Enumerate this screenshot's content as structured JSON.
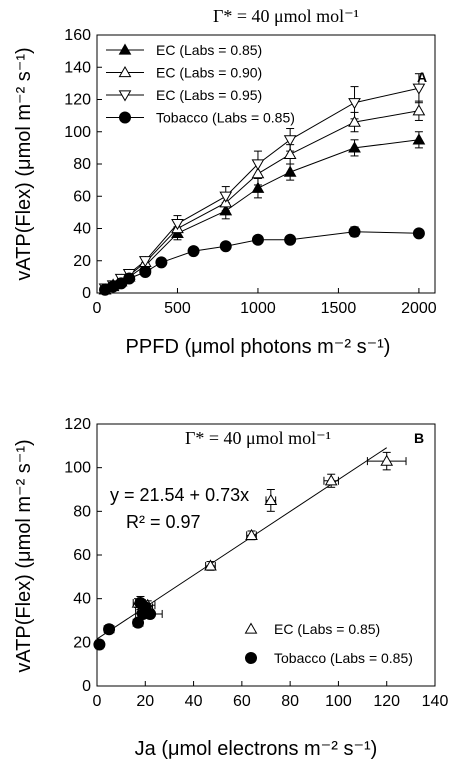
{
  "chart_data": [
    {
      "type": "line",
      "panel_letter": "A",
      "title": "Γ* = 40 μmol mol⁻¹",
      "xlabel": "PPFD (μmol photons m⁻² s⁻¹)",
      "ylabel": "vATP(Flex) (μmol m⁻² s⁻¹)",
      "xlim": [
        0,
        2100
      ],
      "ylim": [
        0,
        160
      ],
      "xticks": [
        0,
        500,
        1000,
        1500,
        2000
      ],
      "yticks": [
        0,
        20,
        40,
        60,
        80,
        100,
        120,
        140,
        160
      ],
      "grid": false,
      "legend_position": "top-left",
      "series": [
        {
          "name": "EC (Labs = 0.85)",
          "marker": "filled-triangle-up",
          "x": [
            50,
            100,
            150,
            200,
            300,
            500,
            800,
            1000,
            1200,
            1600,
            2000
          ],
          "y": [
            2,
            4,
            7,
            10,
            17,
            37,
            51,
            65,
            75,
            90,
            95
          ],
          "err": [
            1,
            1,
            1,
            1,
            2,
            4,
            5,
            6,
            5,
            5,
            5
          ]
        },
        {
          "name": "EC (Labs = 0.90)",
          "marker": "open-triangle-up",
          "x": [
            50,
            100,
            150,
            200,
            300,
            500,
            800,
            1000,
            1200,
            1600,
            2000
          ],
          "y": [
            2,
            5,
            8,
            11,
            19,
            40,
            56,
            74,
            86,
            106,
            113
          ],
          "err": [
            1,
            1,
            1,
            1,
            2,
            4,
            5,
            7,
            6,
            6,
            6
          ]
        },
        {
          "name": "EC (Labs = 0.95)",
          "marker": "open-triangle-down",
          "x": [
            50,
            100,
            150,
            200,
            300,
            500,
            800,
            1000,
            1200,
            1600,
            2000
          ],
          "y": [
            3,
            5,
            9,
            12,
            20,
            43,
            60,
            80,
            95,
            118,
            127
          ],
          "err": [
            1,
            1,
            1,
            1,
            2,
            5,
            6,
            8,
            7,
            10,
            9
          ]
        },
        {
          "name": "Tobacco (Labs = 0.85)",
          "marker": "filled-circle",
          "x": [
            50,
            100,
            150,
            200,
            300,
            400,
            600,
            800,
            1000,
            1200,
            1600,
            2000
          ],
          "y": [
            2,
            4,
            6,
            9,
            13,
            19,
            26,
            29,
            33,
            33,
            38,
            37
          ],
          "err": [
            0,
            0,
            0,
            0,
            0,
            0,
            0,
            0,
            0,
            0,
            3,
            0
          ]
        }
      ]
    },
    {
      "type": "scatter",
      "panel_letter": "B",
      "title": "Γ* = 40 μmol mol⁻¹",
      "xlabel": "Ja (μmol electrons m⁻² s⁻¹)",
      "ylabel": "vATP(Flex) (μmol m⁻² s⁻¹)",
      "xlim": [
        0,
        140
      ],
      "ylim": [
        0,
        120
      ],
      "xticks": [
        0,
        20,
        40,
        60,
        80,
        100,
        120,
        140
      ],
      "yticks": [
        0,
        20,
        40,
        60,
        80,
        100,
        120
      ],
      "grid": false,
      "legend_position": "bottom-right",
      "equation": "y = 21.54 + 0.73x",
      "r_squared": "R² = 0.97",
      "fit": {
        "intercept": 21.54,
        "slope": 0.73,
        "x_range": [
          0,
          120
        ]
      },
      "series": [
        {
          "name": "EC (Labs = 0.85)",
          "marker": "open-triangle-up",
          "x": [
            17,
            19,
            21,
            47,
            64,
            72,
            97,
            120
          ],
          "y": [
            38,
            36,
            37,
            55,
            69,
            85,
            94,
            103
          ],
          "xerr": [
            2,
            3,
            3,
            2,
            2,
            2,
            3,
            8
          ],
          "yerr": [
            2,
            2,
            2,
            2,
            2,
            5,
            3,
            4
          ]
        },
        {
          "name": "Tobacco (Labs = 0.85)",
          "marker": "filled-circle",
          "x": [
            1,
            5,
            17,
            18,
            19,
            20,
            22
          ],
          "y": [
            19,
            26,
            29,
            38,
            33,
            36,
            33
          ],
          "xerr": [
            0,
            2,
            2,
            2,
            3,
            3,
            5
          ],
          "yerr": [
            2,
            2,
            2,
            3,
            2,
            2,
            2
          ]
        }
      ]
    }
  ]
}
